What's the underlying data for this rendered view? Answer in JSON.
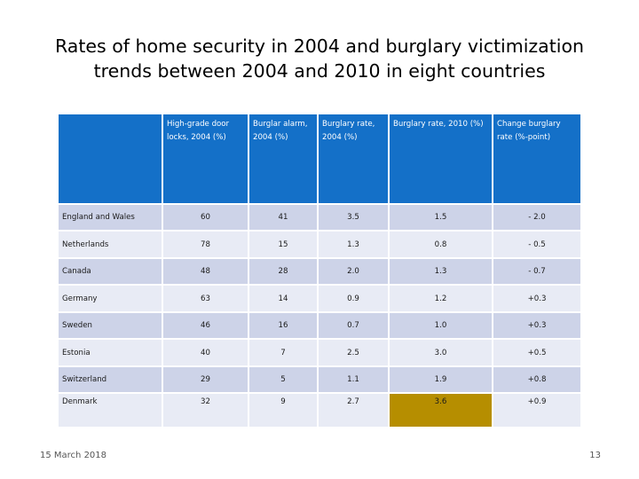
{
  "slide": {
    "title_line1": "Rates of home security in 2004 and burglary victimization",
    "title_line2": "trends between  2004 and 2010 in eight countries",
    "footer_date": "15 March 2018",
    "page_number": "13"
  },
  "table": {
    "headers": [
      "",
      "High-grade door locks, 2004 (%)",
      "Burglar alarm, 2004 (%)",
      "Burglary rate, 2004 (%)",
      "Burglary rate, 2010 (%)",
      "Change burglary rate (%-point)"
    ],
    "rows": [
      {
        "country": "England and Wales",
        "locks": "60",
        "alarm": "41",
        "rate2004": "3.5",
        "rate2010": "1.5",
        "change": "- 2.0"
      },
      {
        "country": "Netherlands",
        "locks": "78",
        "alarm": "15",
        "rate2004": "1.3",
        "rate2010": "0.8",
        "change": "- 0.5"
      },
      {
        "country": "Canada",
        "locks": "48",
        "alarm": "28",
        "rate2004": "2.0",
        "rate2010": "1.3",
        "change": "- 0.7"
      },
      {
        "country": "Germany",
        "locks": "63",
        "alarm": "14",
        "rate2004": "0.9",
        "rate2010": "1.2",
        "change": "+0.3"
      },
      {
        "country": "Sweden",
        "locks": "46",
        "alarm": "16",
        "rate2004": "0.7",
        "rate2010": "1.0",
        "change": "+0.3"
      },
      {
        "country": "Estonia",
        "locks": "40",
        "alarm": "7",
        "rate2004": "2.5",
        "rate2010": "3.0",
        "change": "+0.5"
      },
      {
        "country": "Switzerland",
        "locks": "29",
        "alarm": "5",
        "rate2004": "1.1",
        "rate2010": "1.9",
        "change": "+0.8"
      },
      {
        "country": "Denmark",
        "locks": "32",
        "alarm": "9",
        "rate2004": "2.7",
        "rate2010": "3.6",
        "change": "+0.9"
      }
    ]
  },
  "colors": {
    "header_bg": "#1470c8",
    "row_dark": "#cdd3e8",
    "row_light": "#e8ebf5",
    "highlight": "#b68e00"
  }
}
